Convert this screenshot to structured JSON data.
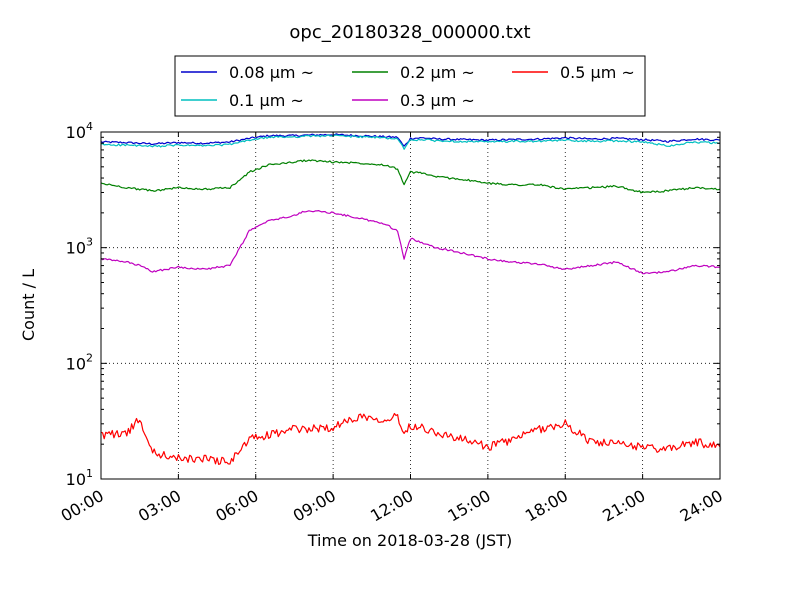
{
  "chart_data": {
    "type": "line",
    "title": "opc_20180328_000000.txt",
    "xlabel": "Time on 2018-03-28 (JST)",
    "ylabel": "Count / L",
    "yscale": "log",
    "grid": true,
    "legend_position": "top-center",
    "xlim": [
      "00:00",
      "24:00"
    ],
    "ylim": [
      10,
      10000
    ],
    "x_ticks": [
      "00:00",
      "03:00",
      "06:00",
      "09:00",
      "12:00",
      "15:00",
      "18:00",
      "21:00",
      "24:00"
    ],
    "y_ticks": [
      {
        "base": "10",
        "exp": "1",
        "value": 10
      },
      {
        "base": "10",
        "exp": "2",
        "value": 100
      },
      {
        "base": "10",
        "exp": "3",
        "value": 1000
      },
      {
        "base": "10",
        "exp": "4",
        "value": 10000
      }
    ],
    "x": [
      "00:00",
      "01:00",
      "01:30",
      "02:00",
      "03:00",
      "04:00",
      "05:00",
      "05:45",
      "06:30",
      "07:30",
      "08:00",
      "09:00",
      "10:00",
      "11:00",
      "11:30",
      "11:45",
      "12:00",
      "12:30",
      "13:00",
      "14:00",
      "15:00",
      "16:00",
      "17:00",
      "18:00",
      "19:00",
      "20:00",
      "21:00",
      "22:00",
      "23:00",
      "24:00"
    ],
    "series": [
      {
        "name": "0.08 μm ~",
        "color": "#0000cc",
        "values": [
          8200,
          8100,
          8000,
          7900,
          8100,
          8000,
          8200,
          8800,
          9300,
          9300,
          9400,
          9500,
          9300,
          9100,
          9000,
          7500,
          8800,
          8900,
          8700,
          8600,
          8500,
          8600,
          8700,
          8900,
          8700,
          8800,
          8600,
          8300,
          8700,
          8500
        ]
      },
      {
        "name": "0.1 μm ~",
        "color": "#00bfbf",
        "values": [
          7800,
          7700,
          7600,
          7500,
          7700,
          7600,
          7800,
          8500,
          9000,
          9100,
          9200,
          9300,
          9100,
          8900,
          8700,
          7200,
          8500,
          8600,
          8400,
          8300,
          8200,
          8300,
          8300,
          8500,
          8300,
          8400,
          8200,
          7600,
          8200,
          8000
        ]
      },
      {
        "name": "0.2 μm ~",
        "color": "#008000",
        "values": [
          3600,
          3300,
          3200,
          3100,
          3300,
          3200,
          3300,
          4500,
          5200,
          5500,
          5700,
          5500,
          5400,
          5200,
          4800,
          3500,
          4500,
          4400,
          4100,
          3900,
          3600,
          3500,
          3500,
          3200,
          3300,
          3400,
          3000,
          3100,
          3300,
          3200
        ]
      },
      {
        "name": "0.3 μm ~",
        "color": "#bf00bf",
        "values": [
          800,
          750,
          700,
          620,
          680,
          650,
          700,
          1400,
          1700,
          1900,
          2100,
          2000,
          1800,
          1600,
          1400,
          800,
          1200,
          1100,
          1000,
          900,
          800,
          750,
          720,
          650,
          700,
          750,
          600,
          620,
          700,
          680
        ]
      },
      {
        "name": "0.5 μm ~",
        "color": "#ff0000",
        "values": [
          24,
          25,
          33,
          17,
          15,
          15,
          14,
          22,
          24,
          27,
          27,
          28,
          35,
          33,
          35,
          25,
          29,
          28,
          25,
          22,
          19,
          22,
          27,
          30,
          21,
          20,
          19,
          18,
          21,
          19
        ]
      }
    ]
  }
}
